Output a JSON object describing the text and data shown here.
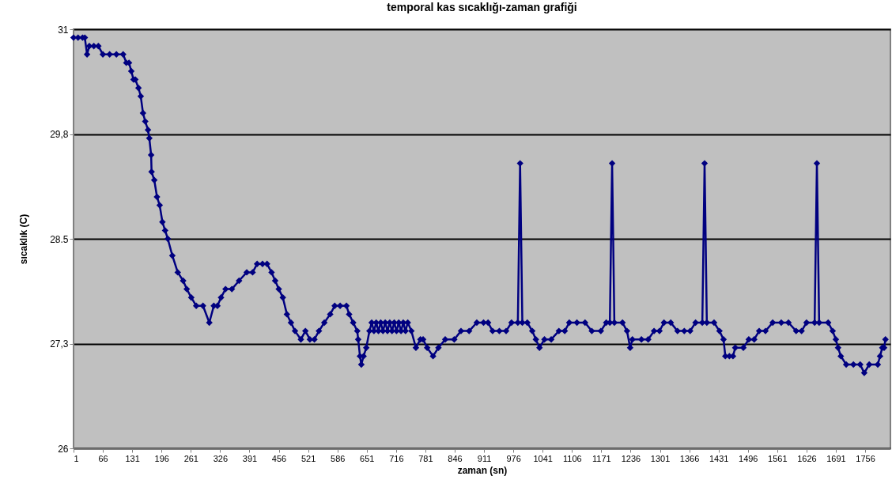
{
  "chart_data": {
    "type": "line",
    "title": "temporal kas sıcaklığı-zaman grafiği",
    "xlabel": "zaman (sn)",
    "ylabel": "sıcaklık (C)",
    "xlim": [
      1,
      1812
    ],
    "xticks": [
      1,
      66,
      131,
      196,
      261,
      326,
      391,
      456,
      521,
      586,
      651,
      716,
      781,
      846,
      911,
      976,
      1041,
      1106,
      1171,
      1236,
      1301,
      1366,
      1431,
      1496,
      1561,
      1626,
      1691,
      1756
    ],
    "ylim": [
      26,
      31
    ],
    "yticks": [
      26,
      {
        "value": 27.25,
        "label": "27,3"
      },
      28.5,
      {
        "value": 29.75,
        "label": "29,8"
      },
      31
    ],
    "grid": "y",
    "marker": "diamond",
    "line_style": "solid",
    "x": [
      1,
      11,
      21,
      26,
      31,
      36,
      46,
      56,
      66,
      81,
      96,
      111,
      118,
      124,
      129,
      134,
      138,
      145,
      150,
      155,
      160,
      166,
      169,
      173,
      174,
      180,
      186,
      192,
      198,
      204,
      210,
      220,
      232,
      244,
      252,
      262,
      273,
      288,
      302,
      312,
      320,
      328,
      338,
      352,
      368,
      385,
      398,
      408,
      420,
      430,
      440,
      448,
      456,
      465,
      474,
      483,
      492,
      505,
      515,
      525,
      535,
      545,
      557,
      570,
      580,
      592,
      606,
      612,
      621,
      630,
      632,
      636,
      639,
      644,
      650,
      657,
      662,
      667,
      672,
      677,
      682,
      687,
      692,
      697,
      702,
      707,
      712,
      717,
      722,
      727,
      732,
      737,
      742,
      750,
      760,
      770,
      776,
      785,
      798,
      810,
      825,
      845,
      860,
      878,
      895,
      910,
      920,
      930,
      945,
      960,
      972,
      986,
      991,
      996,
      1007,
      1018,
      1026,
      1034,
      1045,
      1060,
      1077,
      1090,
      1100,
      1117,
      1135,
      1150,
      1170,
      1182,
      1190,
      1195,
      1200,
      1218,
      1228,
      1235,
      1240,
      1260,
      1275,
      1288,
      1300,
      1310,
      1325,
      1340,
      1355,
      1368,
      1380,
      1395,
      1400,
      1405,
      1421,
      1433,
      1442,
      1446,
      1455,
      1463,
      1468,
      1486,
      1498,
      1510,
      1521,
      1535,
      1551,
      1570,
      1586,
      1603,
      1615,
      1626,
      1644,
      1649,
      1654,
      1674,
      1684,
      1691,
      1696,
      1702,
      1714,
      1730,
      1745,
      1754,
      1765,
      1784,
      1789,
      1794,
      1798,
      1801
    ],
    "series": [
      {
        "color": "#000080",
        "values": [
          30.9,
          30.9,
          30.9,
          30.9,
          30.7,
          30.8,
          30.8,
          30.8,
          30.7,
          30.7,
          30.7,
          30.7,
          30.6,
          30.6,
          30.5,
          30.4,
          30.4,
          30.3,
          30.2,
          30.0,
          29.9,
          29.8,
          29.7,
          29.5,
          29.3,
          29.2,
          29.0,
          28.9,
          28.7,
          28.6,
          28.5,
          28.3,
          28.1,
          28.0,
          27.9,
          27.8,
          27.7,
          27.7,
          27.5,
          27.7,
          27.7,
          27.8,
          27.9,
          27.9,
          28.0,
          28.1,
          28.1,
          28.2,
          28.2,
          28.2,
          28.1,
          28.0,
          27.9,
          27.8,
          27.6,
          27.5,
          27.4,
          27.3,
          27.4,
          27.3,
          27.3,
          27.4,
          27.5,
          27.6,
          27.7,
          27.7,
          27.7,
          27.6,
          27.5,
          27.4,
          27.3,
          27.1,
          27.0,
          27.1,
          27.2,
          27.4,
          27.5,
          27.4,
          27.5,
          27.4,
          27.5,
          27.4,
          27.5,
          27.4,
          27.5,
          27.4,
          27.5,
          27.4,
          27.5,
          27.4,
          27.5,
          27.4,
          27.5,
          27.4,
          27.2,
          27.3,
          27.3,
          27.2,
          27.1,
          27.2,
          27.3,
          27.3,
          27.4,
          27.4,
          27.5,
          27.5,
          27.5,
          27.4,
          27.4,
          27.4,
          27.5,
          27.5,
          29.4,
          27.5,
          27.5,
          27.4,
          27.3,
          27.2,
          27.3,
          27.3,
          27.4,
          27.4,
          27.5,
          27.5,
          27.5,
          27.4,
          27.4,
          27.5,
          27.5,
          29.4,
          27.5,
          27.5,
          27.4,
          27.2,
          27.3,
          27.3,
          27.3,
          27.4,
          27.4,
          27.5,
          27.5,
          27.4,
          27.4,
          27.4,
          27.5,
          27.5,
          29.4,
          27.5,
          27.5,
          27.4,
          27.3,
          27.1,
          27.1,
          27.1,
          27.2,
          27.2,
          27.3,
          27.3,
          27.4,
          27.4,
          27.5,
          27.5,
          27.5,
          27.4,
          27.4,
          27.5,
          27.5,
          29.4,
          27.5,
          27.5,
          27.4,
          27.3,
          27.2,
          27.1,
          27.0,
          27.0,
          27.0,
          26.9,
          27.0,
          27.0,
          27.1,
          27.2,
          27.2,
          27.3
        ]
      }
    ]
  }
}
